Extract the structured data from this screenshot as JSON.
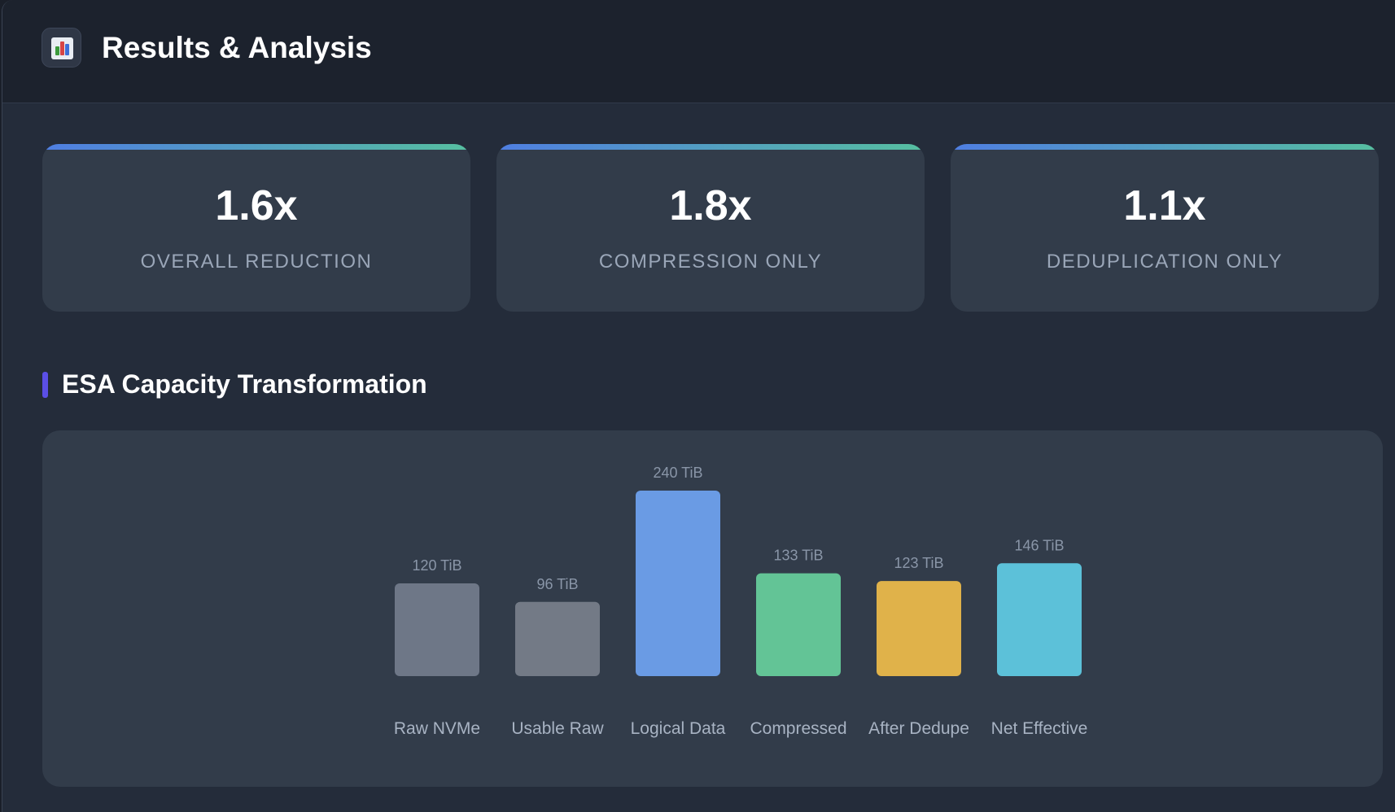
{
  "header": {
    "title": "Results & Analysis",
    "icon": "bar-chart-icon"
  },
  "metrics": [
    {
      "value": "1.6x",
      "caption": "OVERALL REDUCTION"
    },
    {
      "value": "1.8x",
      "caption": "COMPRESSION ONLY"
    },
    {
      "value": "1.1x",
      "caption": "DEDUPLICATION ONLY"
    }
  ],
  "section": {
    "title": "ESA Capacity Transformation"
  },
  "chart_data": {
    "type": "bar",
    "categories": [
      "Raw NVMe",
      "Usable Raw",
      "Logical Data",
      "Compressed",
      "After Dedupe",
      "Net Effective"
    ],
    "values": [
      120,
      96,
      240,
      133,
      123,
      146
    ],
    "value_labels": [
      "120 TiB",
      "96 TiB",
      "240 TiB",
      "133 TiB",
      "123 TiB",
      "146 TiB"
    ],
    "colors": [
      "#6e7787",
      "#737a86",
      "#6a9be4",
      "#63c496",
      "#e0b24a",
      "#5cc1d9"
    ],
    "ylim": [
      0,
      240
    ],
    "grid": false,
    "legend": "none"
  },
  "colors": {
    "background": "#242c3a",
    "card": "#323c4a",
    "accent_start": "#4f7ee2",
    "accent_end": "#56bfa0",
    "section_marker": "#5b4fe6"
  }
}
